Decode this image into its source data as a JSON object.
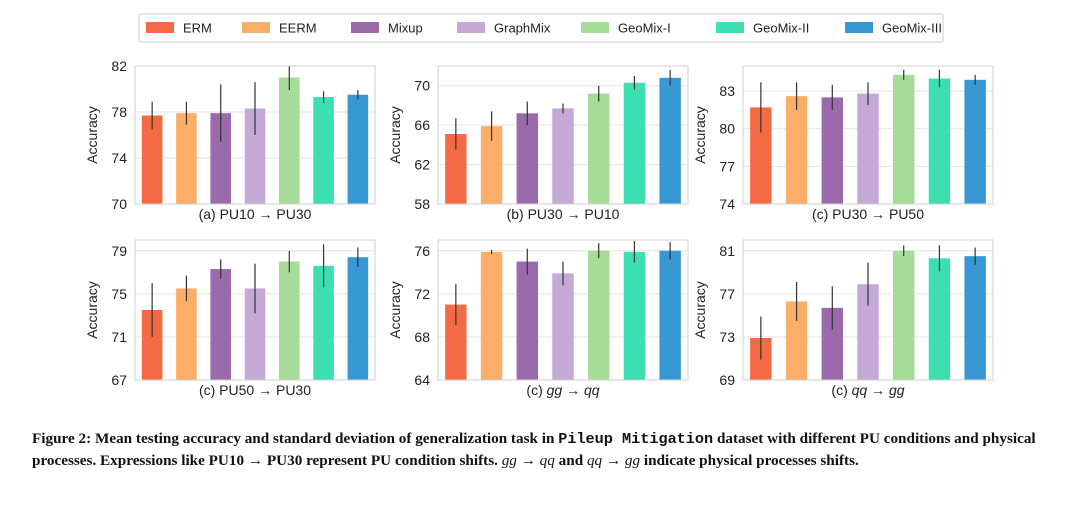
{
  "legend": {
    "entries": [
      {
        "name": "ERM",
        "color": "#f36b44"
      },
      {
        "name": "EERM",
        "color": "#fbae68"
      },
      {
        "name": "Mixup",
        "color": "#9a6aab"
      },
      {
        "name": "GraphMix",
        "color": "#c4a8d6"
      },
      {
        "name": "GeoMix-I",
        "color": "#a6dc97"
      },
      {
        "name": "GeoMix-II",
        "color": "#3ddfb2"
      },
      {
        "name": "GeoMix-III",
        "color": "#3898d3"
      }
    ]
  },
  "chart_data": [
    {
      "type": "bar",
      "title": "(a) PU10 → PU30",
      "ylabel": "Accuracy",
      "ylim": [
        70,
        82
      ],
      "yticks": [
        70,
        74,
        78,
        82
      ],
      "categories": [
        "ERM",
        "EERM",
        "Mixup",
        "GraphMix",
        "GeoMix-I",
        "GeoMix-II",
        "GeoMix-III"
      ],
      "values": [
        77.7,
        77.9,
        77.9,
        78.3,
        81.0,
        79.3,
        79.5
      ],
      "errors": [
        1.2,
        1.0,
        2.5,
        2.3,
        1.1,
        0.5,
        0.4
      ]
    },
    {
      "type": "bar",
      "title": "(b) PU30 → PU10",
      "ylabel": "Accuracy",
      "ylim": [
        58,
        72
      ],
      "yticks": [
        58,
        62,
        66,
        70
      ],
      "categories": [
        "ERM",
        "EERM",
        "Mixup",
        "GraphMix",
        "GeoMix-I",
        "GeoMix-II",
        "GeoMix-III"
      ],
      "values": [
        65.1,
        65.9,
        67.2,
        67.7,
        69.2,
        70.3,
        70.8
      ],
      "errors": [
        1.6,
        1.5,
        1.2,
        0.5,
        0.8,
        0.7,
        0.8
      ]
    },
    {
      "type": "bar",
      "title": "(c) PU30 → PU50",
      "ylabel": "Accuracy",
      "ylim": [
        74,
        85
      ],
      "yticks": [
        74,
        77,
        80,
        83
      ],
      "categories": [
        "ERM",
        "EERM",
        "Mixup",
        "GraphMix",
        "GeoMix-I",
        "GeoMix-II",
        "GeoMix-III"
      ],
      "values": [
        81.7,
        82.6,
        82.5,
        82.8,
        84.3,
        84.0,
        83.9
      ],
      "errors": [
        2.0,
        1.1,
        1.0,
        0.9,
        0.4,
        0.7,
        0.4
      ]
    },
    {
      "type": "bar",
      "title": "(c) PU50 → PU30",
      "ylabel": "Accuracy",
      "ylim": [
        67,
        80
      ],
      "yticks": [
        67,
        71,
        75,
        79
      ],
      "categories": [
        "ERM",
        "EERM",
        "Mixup",
        "GraphMix",
        "GeoMix-I",
        "GeoMix-II",
        "GeoMix-III"
      ],
      "values": [
        73.5,
        75.5,
        77.3,
        75.5,
        78.0,
        77.6,
        78.4
      ],
      "errors": [
        2.5,
        1.2,
        0.9,
        2.3,
        1.0,
        2.0,
        0.9
      ]
    },
    {
      "type": "bar",
      "title": "(c) gg → qq",
      "ylabel": "Accuracy",
      "ylim": [
        64,
        77
      ],
      "yticks": [
        64,
        68,
        72,
        76
      ],
      "categories": [
        "ERM",
        "EERM",
        "Mixup",
        "GraphMix",
        "GeoMix-I",
        "GeoMix-II",
        "GeoMix-III"
      ],
      "values": [
        71.0,
        75.9,
        75.0,
        73.9,
        76.0,
        75.9,
        76.0
      ],
      "errors": [
        1.9,
        0.2,
        1.2,
        1.1,
        0.7,
        1.0,
        0.8
      ]
    },
    {
      "type": "bar",
      "title": "(c) qq → gg",
      "ylabel": "Accuracy",
      "ylim": [
        69,
        82
      ],
      "yticks": [
        69,
        73,
        77,
        81
      ],
      "categories": [
        "ERM",
        "EERM",
        "Mixup",
        "GraphMix",
        "GeoMix-I",
        "GeoMix-II",
        "GeoMix-III"
      ],
      "values": [
        72.9,
        76.3,
        75.7,
        77.9,
        81.0,
        80.3,
        80.5
      ],
      "errors": [
        2.0,
        1.8,
        2.0,
        2.0,
        0.5,
        1.2,
        0.8
      ]
    }
  ],
  "caption": {
    "prefix": "Figure 2: Mean testing accuracy and standard deviation of generalization task in ",
    "dataset": "Pileup Mitigation",
    "middle": " dataset with different PU conditions and physical processes. Expressions like PU10 → PU30 represent PU condition shifts. ",
    "expr1": "gg → qq",
    "and": " and ",
    "expr2": "qq → gg",
    "suffix": " indicate physical processes shifts."
  }
}
